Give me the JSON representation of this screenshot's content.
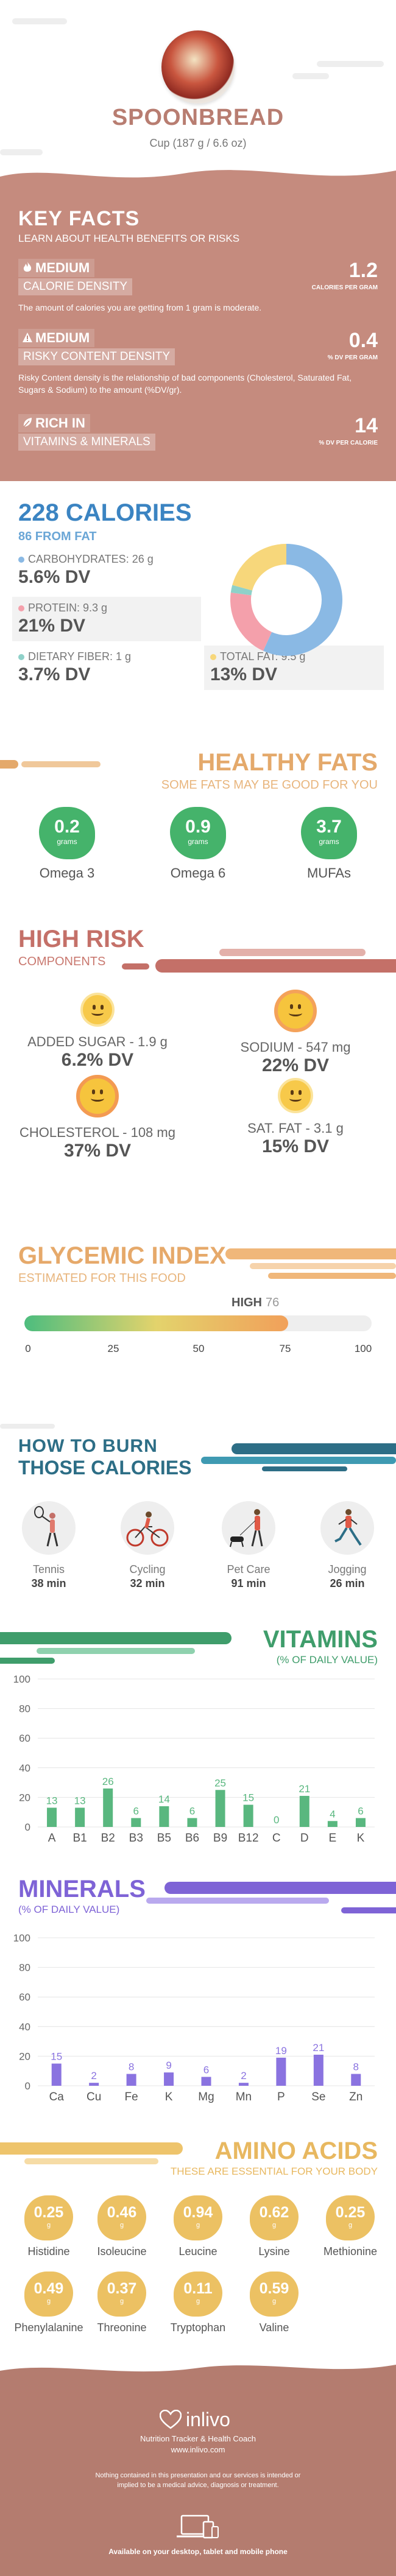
{
  "food": {
    "name": "SPOONBREAD",
    "serving": "Cup (187 g / 6.6 oz)"
  },
  "key_facts": {
    "title": "KEY FACTS",
    "subtitle": "LEARN ABOUT HEALTH BENEFITS OR RISKS",
    "rows": [
      {
        "level": "MEDIUM",
        "name": "CALORIE DENSITY",
        "value": "1.2",
        "unit": "CALORIES PER GRAM",
        "desc": "The amount of calories you are getting from 1 gram is moderate.",
        "icon": "flame-icon"
      },
      {
        "level": "MEDIUM",
        "name": "RISKY CONTENT DENSITY",
        "value": "0.4",
        "unit": "% DV PER GRAM",
        "desc": "Risky Content density is the relationship of bad components (Cholesterol, Saturated Fat, Sugars & Sodium) to the amount (%DV/gr).",
        "icon": "warning-icon"
      },
      {
        "level": "RICH  IN",
        "name": "VITAMINS & MINERALS",
        "value": "14",
        "unit": "% DV PER CALORIE",
        "desc": "",
        "icon": "leaf-icon"
      }
    ]
  },
  "calories": {
    "total": "228 CALORIES",
    "from_fat": "86 FROM FAT",
    "macros": [
      {
        "label": "CARBOHYDRATES: 26 g",
        "dv": "5.6% DV",
        "color": "#8ab9e4"
      },
      {
        "label": "PROTEIN: 9.3 g",
        "dv": "21% DV",
        "color": "#f4a0ab"
      },
      {
        "label": "DIETARY FIBER: 1 g",
        "dv": "3.7% DV",
        "color": "#8fd1c9"
      },
      {
        "label": "TOTAL FAT: 9.5 g",
        "dv": "13% DV",
        "color": "#f7d77b"
      }
    ]
  },
  "chart_data": [
    {
      "type": "pie",
      "title": "",
      "categories": [
        "Carbohydrates",
        "Protein",
        "Dietary Fiber",
        "Total Fat"
      ],
      "values": [
        26,
        9.3,
        1,
        9.5
      ],
      "colors": [
        "#8ab9e4",
        "#f4a0ab",
        "#8fd1c9",
        "#f7d77b"
      ]
    },
    {
      "type": "bar",
      "title": "VITAMINS",
      "subtitle": "(% OF DAILY VALUE)",
      "categories": [
        "A",
        "B1",
        "B2",
        "B3",
        "B5",
        "B6",
        "B9",
        "B12",
        "C",
        "D",
        "E",
        "K"
      ],
      "values": [
        13,
        13,
        26,
        6,
        14,
        6,
        25,
        15,
        0,
        21,
        4,
        6
      ],
      "ylim": [
        0,
        100
      ],
      "yticks": [
        0,
        20,
        40,
        60,
        80,
        100
      ],
      "grid": true,
      "color": "#59b77f"
    },
    {
      "type": "bar",
      "title": "MINERALS",
      "subtitle": "(% OF DAILY VALUE)",
      "categories": [
        "Ca",
        "Cu",
        "Fe",
        "K",
        "Mg",
        "Mn",
        "P",
        "Se",
        "Zn"
      ],
      "values": [
        15,
        2,
        8,
        9,
        6,
        2,
        19,
        21,
        8
      ],
      "ylim": [
        0,
        100
      ],
      "yticks": [
        0,
        20,
        40,
        60,
        80,
        100
      ],
      "grid": true,
      "color": "#8a73e0"
    }
  ],
  "healthy_fats": {
    "title": "HEALTHY FATS",
    "subtitle": "SOME FATS MAY BE GOOD FOR YOU",
    "items": [
      {
        "value": "0.2",
        "unit": "grams",
        "name": "Omega 3"
      },
      {
        "value": "0.9",
        "unit": "grams",
        "name": "Omega 6"
      },
      {
        "value": "3.7",
        "unit": "grams",
        "name": "MUFAs"
      }
    ]
  },
  "high_risk": {
    "title": "HIGH RISK",
    "subtitle": "COMPONENTS",
    "items": [
      {
        "label": "ADDED SUGAR - 1.9 g",
        "dv": "6.2% DV"
      },
      {
        "label": "SODIUM - 547 mg",
        "dv": "22% DV"
      },
      {
        "label": "CHOLESTEROL - 108 mg",
        "dv": "37% DV"
      },
      {
        "label": "SAT. FAT - 3.1 g",
        "dv": "15% DV"
      }
    ]
  },
  "glycemic": {
    "title": "GLYCEMIC INDEX",
    "subtitle": "ESTIMATED FOR THIS FOOD",
    "level": "HIGH",
    "value": "76",
    "value_num": 76,
    "ticks": [
      "0",
      "25",
      "50",
      "75",
      "100"
    ]
  },
  "burn": {
    "title_line1": "HOW TO BURN",
    "title_line2": "THOSE CALORIES",
    "activities": [
      {
        "name": "Tennis",
        "time": "38 min",
        "icon": "tennis-icon"
      },
      {
        "name": "Cycling",
        "time": "32 min",
        "icon": "cycling-icon"
      },
      {
        "name": "Pet Care",
        "time": "91 min",
        "icon": "dog-walking-icon"
      },
      {
        "name": "Jogging",
        "time": "26 min",
        "icon": "jogging-icon"
      }
    ]
  },
  "vitamins": {
    "title": "VITAMINS",
    "subtitle": "(% OF DAILY VALUE)"
  },
  "minerals": {
    "title": "MINERALS",
    "subtitle": "(% OF DAILY VALUE)"
  },
  "amino": {
    "title": "AMINO ACIDS",
    "subtitle": "THESE ARE ESSENTIAL FOR YOUR BODY",
    "items": [
      {
        "value": "0.25",
        "unit": "g",
        "name": "Histidine"
      },
      {
        "value": "0.46",
        "unit": "g",
        "name": "Isoleucine"
      },
      {
        "value": "0.94",
        "unit": "g",
        "name": "Leucine"
      },
      {
        "value": "0.62",
        "unit": "g",
        "name": "Lysine"
      },
      {
        "value": "0.25",
        "unit": "g",
        "name": "Methionine"
      },
      {
        "value": "0.49",
        "unit": "g",
        "name": "Phenylalanine"
      },
      {
        "value": "0.37",
        "unit": "g",
        "name": "Threonine"
      },
      {
        "value": "0.11",
        "unit": "g",
        "name": "Tryptophan"
      },
      {
        "value": "0.59",
        "unit": "g",
        "name": "Valine"
      }
    ]
  },
  "footer": {
    "brand": "inlivo",
    "tagline": "Nutrition Tracker & Health Coach",
    "url": "www.inlivo.com",
    "disclaimer": "Nothing contained in this presentation and our services is intended or implied to be a medical advice, diagnosis or treatment.",
    "available": "Available on your desktop, tablet and mobile phone"
  }
}
